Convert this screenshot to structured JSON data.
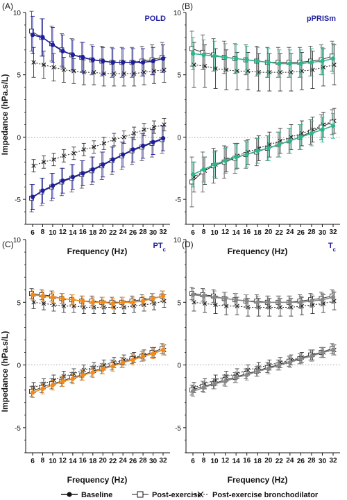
{
  "figure": {
    "y_axis_label": "Impedance (hPa.s/L)",
    "x_axis_label": "Frequency (Hz)",
    "legend": [
      {
        "label": "Baseline",
        "marker": "circle",
        "line": "solid"
      },
      {
        "label": "Post-exercise",
        "marker": "square",
        "line": "solid"
      },
      {
        "label": "Post-exercise bronchodilator",
        "marker": "cross",
        "line": "dotted"
      }
    ]
  },
  "chart_data": [
    {
      "type": "line",
      "panel": "(A)",
      "title": "POLD",
      "title_subscript": "",
      "color": "#1f1f9e",
      "x": [
        6,
        8,
        10,
        12,
        14,
        16,
        18,
        20,
        22,
        24,
        26,
        28,
        30,
        32
      ],
      "ylim": [
        -7,
        10
      ],
      "yticks": [
        -5,
        0,
        5,
        10
      ],
      "zero_line": true,
      "series": [
        {
          "name": "Baseline",
          "role": "baseline_upper",
          "values": [
            8.2,
            8.0,
            7.4,
            6.9,
            6.6,
            6.4,
            6.2,
            6.1,
            6.0,
            6.0,
            6.0,
            6.0,
            6.1,
            6.3
          ],
          "err": [
            1.5,
            1.5,
            1.4,
            1.3,
            1.2,
            1.2,
            1.1,
            1.1,
            1.1,
            1.1,
            1.1,
            1.1,
            1.1,
            1.1
          ]
        },
        {
          "name": "Post-exercise",
          "role": "postex_upper",
          "values": [
            8.5,
            8.0,
            7.5,
            7.0,
            6.6,
            6.4,
            6.2,
            6.1,
            6.0,
            6.0,
            6.0,
            6.1,
            6.2,
            6.4
          ],
          "err": [
            1.6,
            1.5,
            1.4,
            1.3,
            1.3,
            1.2,
            1.2,
            1.2,
            1.2,
            1.2,
            1.2,
            1.2,
            1.2,
            1.2
          ]
        },
        {
          "name": "Post-exercise bronchodilator",
          "role": "bd_upper",
          "values": [
            6.0,
            5.8,
            5.6,
            5.4,
            5.3,
            5.2,
            5.2,
            5.1,
            5.1,
            5.1,
            5.1,
            5.2,
            5.3,
            5.4
          ],
          "err": [
            1.2,
            1.1,
            1.1,
            1.0,
            1.0,
            1.0,
            1.0,
            1.0,
            1.0,
            1.0,
            1.0,
            1.0,
            1.0,
            1.0
          ]
        },
        {
          "name": "Baseline",
          "role": "baseline_lower",
          "values": [
            -4.8,
            -4.3,
            -3.9,
            -3.5,
            -3.2,
            -2.9,
            -2.6,
            -2.2,
            -1.8,
            -1.4,
            -1.0,
            -0.7,
            -0.4,
            -0.1
          ],
          "err": [
            1.0,
            1.0,
            1.0,
            1.0,
            1.0,
            1.0,
            1.0,
            1.0,
            1.0,
            1.0,
            1.0,
            1.0,
            1.0,
            1.0
          ]
        },
        {
          "name": "Post-exercise",
          "role": "postex_lower",
          "values": [
            -4.9,
            -4.4,
            -4.0,
            -3.6,
            -3.3,
            -3.0,
            -2.7,
            -2.3,
            -1.9,
            -1.5,
            -1.1,
            -0.8,
            -0.5,
            -0.2
          ],
          "err": [
            1.1,
            1.1,
            1.1,
            1.1,
            1.1,
            1.1,
            1.1,
            1.1,
            1.1,
            1.1,
            1.1,
            1.1,
            1.1,
            1.1
          ]
        },
        {
          "name": "Post-exercise bronchodilator",
          "role": "bd_lower",
          "values": [
            -2.3,
            -2.0,
            -1.8,
            -1.5,
            -1.3,
            -1.0,
            -0.8,
            -0.5,
            -0.2,
            0.0,
            0.3,
            0.6,
            0.8,
            1.0
          ],
          "err": [
            0.5,
            0.5,
            0.5,
            0.5,
            0.5,
            0.5,
            0.5,
            0.5,
            0.5,
            0.5,
            0.5,
            0.5,
            0.5,
            0.5
          ]
        }
      ]
    },
    {
      "type": "line",
      "panel": "(B)",
      "title": "pPRISm",
      "title_subscript": "",
      "color": "#2fb58c",
      "x": [
        6,
        8,
        10,
        12,
        14,
        16,
        18,
        20,
        22,
        24,
        26,
        28,
        30,
        32
      ],
      "ylim": [
        -7,
        10
      ],
      "yticks": [
        -5,
        0,
        5,
        10
      ],
      "zero_line": true,
      "series": [
        {
          "name": "Baseline",
          "role": "baseline_upper",
          "values": [
            6.7,
            6.6,
            6.5,
            6.4,
            6.3,
            6.2,
            6.1,
            6.0,
            5.9,
            5.9,
            5.9,
            6.0,
            6.1,
            6.3
          ],
          "err": [
            1.3,
            1.2,
            1.2,
            1.1,
            1.1,
            1.1,
            1.1,
            1.1,
            1.1,
            1.1,
            1.1,
            1.1,
            1.1,
            1.2
          ]
        },
        {
          "name": "Post-exercise",
          "role": "postex_upper",
          "values": [
            7.1,
            6.8,
            6.6,
            6.4,
            6.3,
            6.2,
            6.1,
            6.0,
            6.0,
            6.0,
            6.0,
            6.1,
            6.2,
            6.5
          ],
          "err": [
            1.4,
            1.4,
            1.3,
            1.3,
            1.2,
            1.2,
            1.2,
            1.2,
            1.2,
            1.2,
            1.2,
            1.2,
            1.2,
            1.2
          ]
        },
        {
          "name": "Post-exercise bronchodilator",
          "role": "bd_upper",
          "values": [
            5.8,
            5.7,
            5.5,
            5.4,
            5.3,
            5.3,
            5.2,
            5.2,
            5.2,
            5.2,
            5.3,
            5.4,
            5.6,
            5.8
          ],
          "err": [
            1.8,
            1.7,
            1.6,
            1.6,
            1.5,
            1.5,
            1.5,
            1.5,
            1.5,
            1.5,
            1.5,
            1.5,
            1.5,
            1.6
          ]
        },
        {
          "name": "Baseline",
          "role": "baseline_lower",
          "values": [
            -3.0,
            -2.6,
            -2.2,
            -1.9,
            -1.6,
            -1.4,
            -1.1,
            -0.9,
            -0.6,
            -0.3,
            0.0,
            0.3,
            0.6,
            0.9
          ],
          "err": [
            1.0,
            1.0,
            1.0,
            1.0,
            1.0,
            1.0,
            1.0,
            1.0,
            1.0,
            1.0,
            1.0,
            1.0,
            1.0,
            1.0
          ]
        },
        {
          "name": "Post-exercise",
          "role": "postex_lower",
          "values": [
            -3.6,
            -2.8,
            -2.3,
            -2.0,
            -1.7,
            -1.4,
            -1.2,
            -0.9,
            -0.6,
            -0.3,
            0.0,
            0.4,
            0.8,
            1.2
          ],
          "err": [
            2.0,
            1.6,
            1.4,
            1.3,
            1.2,
            1.1,
            1.1,
            1.0,
            1.0,
            1.0,
            1.0,
            1.0,
            1.0,
            1.0
          ]
        },
        {
          "name": "Post-exercise bronchodilator",
          "role": "bd_lower",
          "values": [
            -3.2,
            -2.7,
            -2.2,
            -1.8,
            -1.5,
            -1.2,
            -0.9,
            -0.6,
            -0.3,
            0.0,
            0.3,
            0.6,
            1.0,
            1.3
          ],
          "err": [
            1.2,
            1.1,
            1.1,
            1.0,
            1.0,
            1.0,
            1.0,
            1.0,
            1.0,
            1.0,
            1.0,
            1.0,
            1.0,
            1.0
          ]
        }
      ]
    },
    {
      "type": "line",
      "panel": "(C)",
      "title": "PT",
      "title_subscript": "c",
      "color": "#f28a1c",
      "x": [
        6,
        8,
        10,
        12,
        14,
        16,
        18,
        20,
        22,
        24,
        26,
        28,
        30,
        32
      ],
      "ylim": [
        -7,
        10
      ],
      "yticks": [
        -5,
        0,
        5,
        10
      ],
      "zero_line": true,
      "series": [
        {
          "name": "Baseline",
          "role": "baseline_upper",
          "values": [
            5.6,
            5.5,
            5.4,
            5.3,
            5.2,
            5.1,
            5.0,
            5.0,
            4.9,
            5.0,
            5.0,
            5.1,
            5.3,
            5.5
          ],
          "err": [
            0.4,
            0.4,
            0.4,
            0.4,
            0.4,
            0.4,
            0.4,
            0.4,
            0.4,
            0.4,
            0.4,
            0.4,
            0.4,
            0.4
          ]
        },
        {
          "name": "Post-exercise",
          "role": "postex_upper",
          "values": [
            5.7,
            5.6,
            5.5,
            5.3,
            5.2,
            5.1,
            5.1,
            5.0,
            5.0,
            5.0,
            5.1,
            5.2,
            5.3,
            5.5
          ],
          "err": [
            0.4,
            0.4,
            0.4,
            0.4,
            0.4,
            0.4,
            0.4,
            0.4,
            0.4,
            0.4,
            0.4,
            0.4,
            0.4,
            0.4
          ]
        },
        {
          "name": "Post-exercise bronchodilator",
          "role": "bd_upper",
          "values": [
            5.0,
            4.9,
            4.8,
            4.7,
            4.7,
            4.6,
            4.6,
            4.6,
            4.6,
            4.6,
            4.7,
            4.8,
            4.9,
            5.1
          ],
          "err": [
            0.5,
            0.5,
            0.5,
            0.5,
            0.5,
            0.5,
            0.5,
            0.5,
            0.5,
            0.5,
            0.5,
            0.5,
            0.5,
            0.5
          ]
        },
        {
          "name": "Baseline",
          "role": "baseline_lower",
          "values": [
            -2.2,
            -1.9,
            -1.6,
            -1.3,
            -1.1,
            -0.8,
            -0.6,
            -0.3,
            -0.1,
            0.2,
            0.4,
            0.7,
            0.9,
            1.2
          ],
          "err": [
            0.4,
            0.4,
            0.4,
            0.4,
            0.4,
            0.4,
            0.4,
            0.4,
            0.4,
            0.4,
            0.4,
            0.4,
            0.4,
            0.4
          ]
        },
        {
          "name": "Post-exercise",
          "role": "postex_lower",
          "values": [
            -2.1,
            -1.8,
            -1.5,
            -1.3,
            -1.0,
            -0.8,
            -0.5,
            -0.3,
            0.0,
            0.2,
            0.5,
            0.7,
            1.0,
            1.3
          ],
          "err": [
            0.4,
            0.4,
            0.4,
            0.4,
            0.4,
            0.4,
            0.4,
            0.4,
            0.4,
            0.4,
            0.4,
            0.4,
            0.4,
            0.4
          ]
        },
        {
          "name": "Post-exercise bronchodilator",
          "role": "bd_lower",
          "values": [
            -1.8,
            -1.5,
            -1.2,
            -0.9,
            -0.7,
            -0.4,
            -0.2,
            0.0,
            0.2,
            0.4,
            0.6,
            0.8,
            1.0,
            1.2
          ],
          "err": [
            0.4,
            0.4,
            0.4,
            0.4,
            0.4,
            0.4,
            0.4,
            0.4,
            0.4,
            0.4,
            0.4,
            0.4,
            0.4,
            0.4
          ]
        }
      ]
    },
    {
      "type": "line",
      "panel": "(D)",
      "title": "T",
      "title_subscript": "c",
      "color": "#888888",
      "x": [
        6,
        8,
        10,
        12,
        14,
        16,
        18,
        20,
        22,
        24,
        26,
        28,
        30,
        32
      ],
      "ylim": [
        -7,
        10
      ],
      "yticks": [
        -5,
        0,
        5,
        10
      ],
      "zero_line": true,
      "series": [
        {
          "name": "Baseline",
          "role": "baseline_upper",
          "values": [
            5.6,
            5.5,
            5.4,
            5.3,
            5.2,
            5.1,
            5.0,
            5.0,
            5.0,
            5.0,
            5.0,
            5.1,
            5.2,
            5.4
          ],
          "err": [
            0.5,
            0.5,
            0.5,
            0.5,
            0.5,
            0.5,
            0.5,
            0.5,
            0.5,
            0.5,
            0.5,
            0.5,
            0.5,
            0.5
          ]
        },
        {
          "name": "Post-exercise",
          "role": "postex_upper",
          "values": [
            5.7,
            5.6,
            5.5,
            5.3,
            5.2,
            5.1,
            5.1,
            5.0,
            5.0,
            5.0,
            5.1,
            5.2,
            5.3,
            5.5
          ],
          "err": [
            0.5,
            0.5,
            0.5,
            0.5,
            0.5,
            0.5,
            0.5,
            0.5,
            0.5,
            0.5,
            0.5,
            0.5,
            0.5,
            0.5
          ]
        },
        {
          "name": "Post-exercise bronchodilator",
          "role": "bd_upper",
          "values": [
            5.0,
            4.9,
            4.8,
            4.7,
            4.7,
            4.6,
            4.6,
            4.6,
            4.6,
            4.6,
            4.7,
            4.8,
            4.9,
            5.1
          ],
          "err": [
            0.7,
            0.7,
            0.7,
            0.7,
            0.7,
            0.7,
            0.7,
            0.7,
            0.7,
            0.7,
            0.7,
            0.7,
            0.7,
            0.7
          ]
        },
        {
          "name": "Baseline",
          "role": "baseline_lower",
          "values": [
            -2.1,
            -1.8,
            -1.5,
            -1.3,
            -1.0,
            -0.8,
            -0.5,
            -0.3,
            0.0,
            0.2,
            0.5,
            0.7,
            1.0,
            1.2
          ],
          "err": [
            0.4,
            0.4,
            0.4,
            0.4,
            0.4,
            0.4,
            0.4,
            0.4,
            0.4,
            0.4,
            0.4,
            0.4,
            0.4,
            0.4
          ]
        },
        {
          "name": "Post-exercise",
          "role": "postex_lower",
          "values": [
            -2.0,
            -1.7,
            -1.5,
            -1.2,
            -1.0,
            -0.7,
            -0.5,
            -0.2,
            0.0,
            0.3,
            0.5,
            0.8,
            1.0,
            1.3
          ],
          "err": [
            0.4,
            0.4,
            0.4,
            0.4,
            0.4,
            0.4,
            0.4,
            0.4,
            0.4,
            0.4,
            0.4,
            0.4,
            0.4,
            0.4
          ]
        },
        {
          "name": "Post-exercise bronchodilator",
          "role": "bd_lower",
          "values": [
            -1.8,
            -1.5,
            -1.2,
            -0.9,
            -0.7,
            -0.4,
            -0.2,
            0.0,
            0.2,
            0.4,
            0.6,
            0.8,
            1.0,
            1.2
          ],
          "err": [
            0.4,
            0.4,
            0.4,
            0.4,
            0.4,
            0.4,
            0.4,
            0.4,
            0.4,
            0.4,
            0.4,
            0.4,
            0.4,
            0.4
          ]
        }
      ]
    }
  ]
}
